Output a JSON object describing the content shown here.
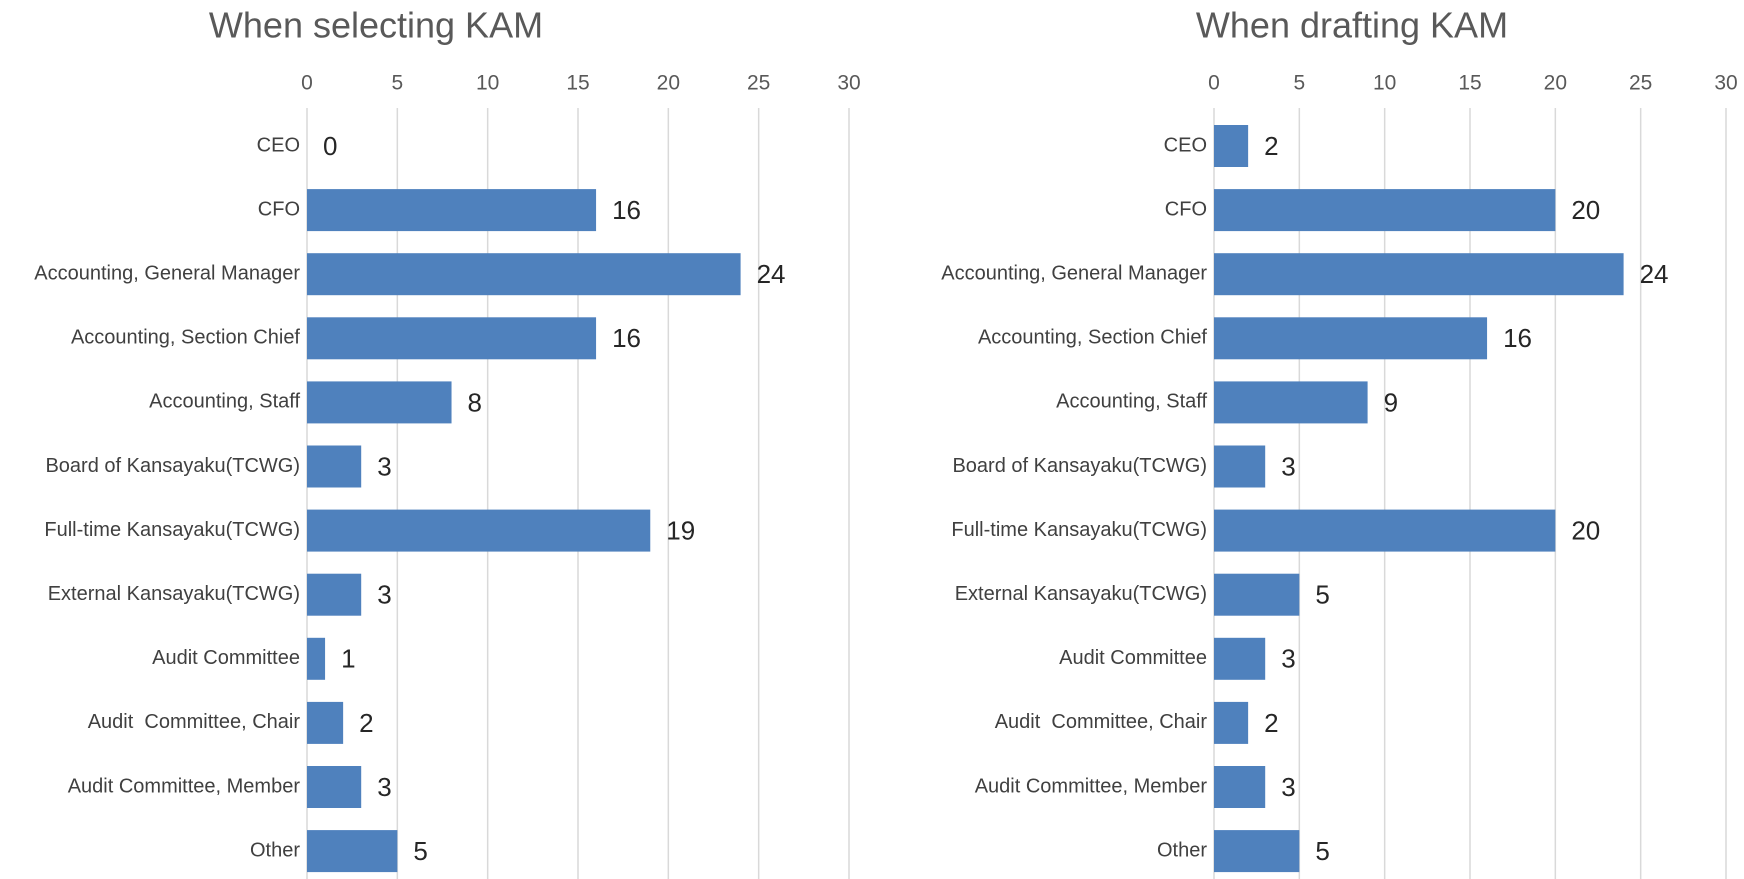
{
  "chart_data": [
    {
      "type": "bar",
      "title": "When selecting KAM",
      "categories": [
        "CEO",
        "CFO",
        "Accounting, General Manager",
        "Accounting, Section Chief",
        "Accounting, Staff",
        "Board of Kansayaku(TCWG)",
        "Full-time Kansayaku(TCWG)",
        "External Kansayaku(TCWG)",
        "Audit Committee",
        "Audit  Committee, Chair",
        "Audit Committee, Member",
        "Other"
      ],
      "values": [
        0,
        16,
        24,
        16,
        8,
        3,
        19,
        3,
        1,
        2,
        3,
        5
      ],
      "color": "#4f81bd",
      "xlim": [
        0,
        30
      ],
      "xticks": [
        0,
        5,
        10,
        15,
        20,
        25,
        30
      ],
      "grid": true
    },
    {
      "type": "bar",
      "title": "When drafting KAM",
      "categories": [
        "CEO",
        "CFO",
        "Accounting, General Manager",
        "Accounting, Section Chief",
        "Accounting, Staff",
        "Board of Kansayaku(TCWG)",
        "Full-time Kansayaku(TCWG)",
        "External Kansayaku(TCWG)",
        "Audit Committee",
        "Audit  Committee, Chair",
        "Audit Committee, Member",
        "Other"
      ],
      "values": [
        2,
        20,
        24,
        16,
        9,
        3,
        20,
        5,
        3,
        2,
        3,
        5
      ],
      "color": "#4f81bd",
      "xlim": [
        0,
        30
      ],
      "xticks": [
        0,
        5,
        10,
        15,
        20,
        25,
        30
      ],
      "grid": true
    }
  ]
}
